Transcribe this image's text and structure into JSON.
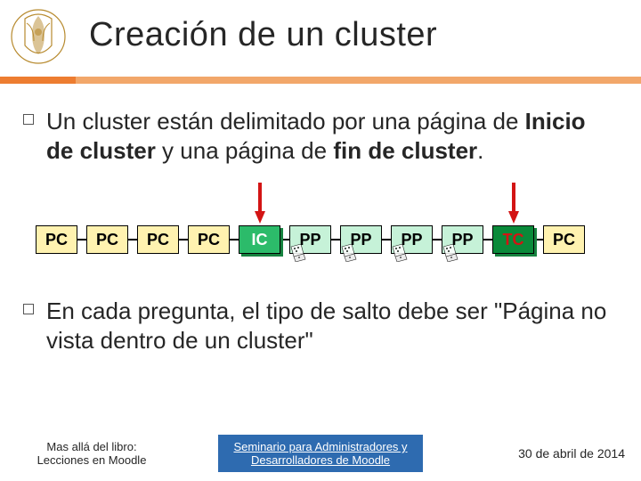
{
  "colors": {
    "accent": "#ed7d31",
    "accent_light": "#f2a76a",
    "footer_box": "#2e6bb0",
    "arrow": "#d31414",
    "box_pc_fill": "#fff2b0",
    "box_ic_fill": "#2cbb6a",
    "box_ic_shadow": "#16823f",
    "box_pp_fill": "#c6f2d8",
    "box_tc_fill": "#0a8a3a",
    "text": "#262626"
  },
  "title": "Creación de un cluster",
  "bullets": [
    {
      "parts": [
        {
          "t": "Un cluster están delimitado por una página de ",
          "b": false
        },
        {
          "t": "Inicio de cluster",
          "b": true
        },
        {
          "t": " y una página de ",
          "b": false
        },
        {
          "t": "fin de cluster",
          "b": true
        },
        {
          "t": ".",
          "b": false
        }
      ]
    },
    {
      "parts": [
        {
          "t": "En cada pregunta, el tipo de salto debe ser \"Página no vista dentro de un cluster\"",
          "b": false
        }
      ]
    }
  ],
  "diagram": {
    "boxes": [
      {
        "label": "PC",
        "kind": "pc"
      },
      {
        "label": "PC",
        "kind": "pc"
      },
      {
        "label": "PC",
        "kind": "pc"
      },
      {
        "label": "PC",
        "kind": "pc"
      },
      {
        "label": "IC",
        "kind": "ic"
      },
      {
        "label": "PP",
        "kind": "pp"
      },
      {
        "label": "PP",
        "kind": "pp"
      },
      {
        "label": "PP",
        "kind": "pp"
      },
      {
        "label": "PP",
        "kind": "pp"
      },
      {
        "label": "TC",
        "kind": "tc"
      },
      {
        "label": "PC",
        "kind": "pc"
      }
    ],
    "arrows_at": [
      4,
      9
    ]
  },
  "footer": {
    "left_line1": "Mas allá del libro:",
    "left_line2": "Lecciones en Moodle",
    "center_line1": "Seminario para Administradores y",
    "center_line2": "Desarrolladores de Moodle",
    "right": "30 de abril de 2014"
  }
}
